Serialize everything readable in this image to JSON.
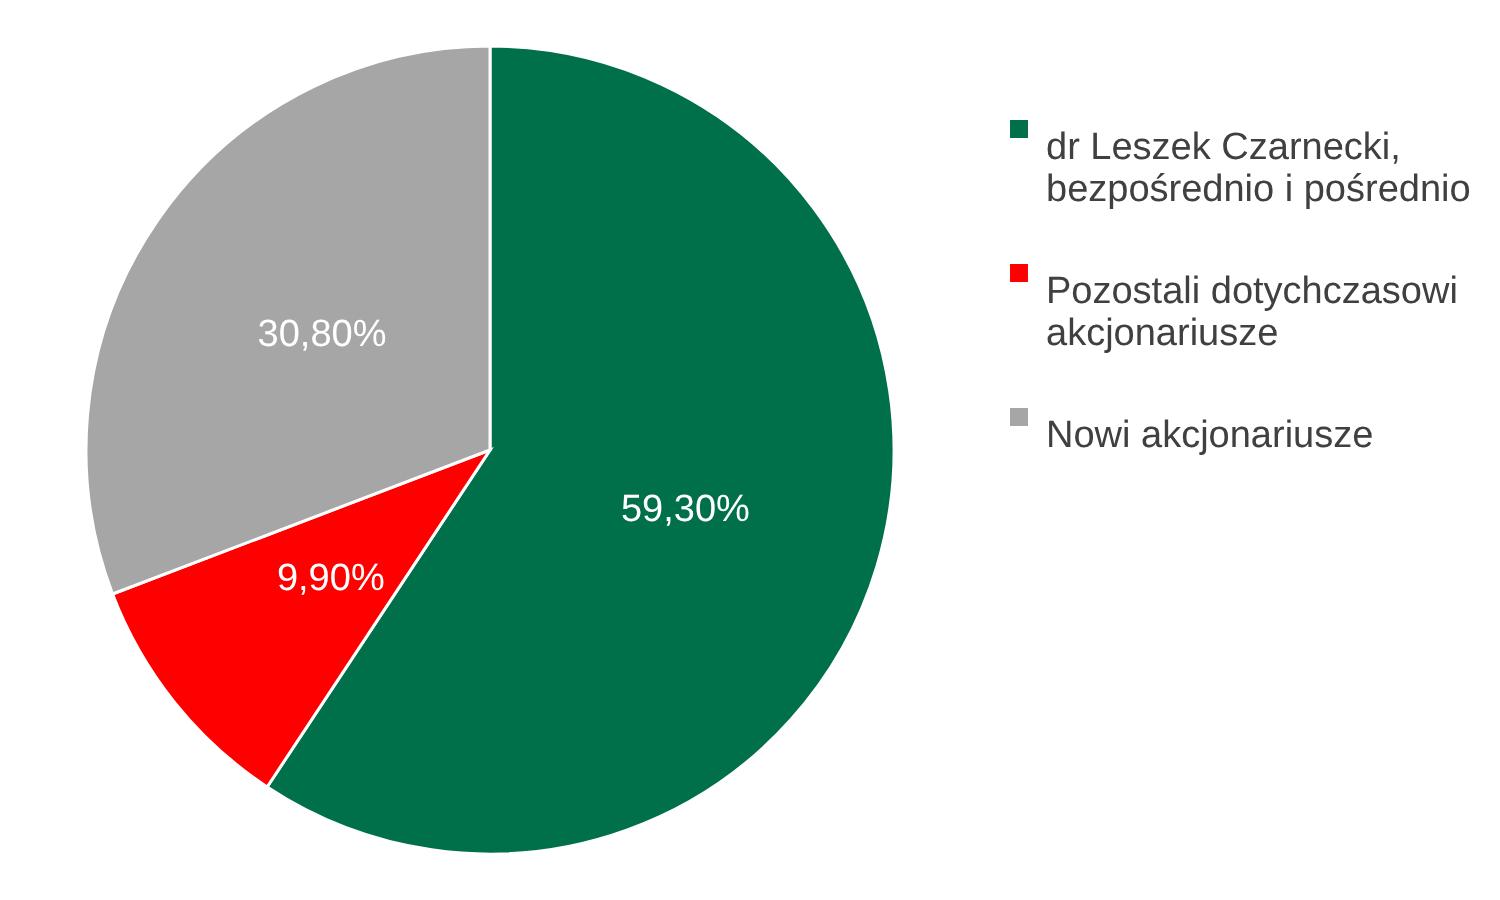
{
  "chart_data": {
    "type": "pie",
    "categories": [
      "dr Leszek Czarnecki, bezpośrednio i pośrednio",
      "Pozostali dotychczasowi akcjonariusze",
      "Nowi akcjonariusze"
    ],
    "values": [
      59.3,
      9.9,
      30.8
    ],
    "colors": [
      "#00704a",
      "#ff0000",
      "#a6a6a6"
    ],
    "value_labels": [
      "59,30%",
      "9,90%",
      "30,80%"
    ],
    "legend": "right"
  }
}
